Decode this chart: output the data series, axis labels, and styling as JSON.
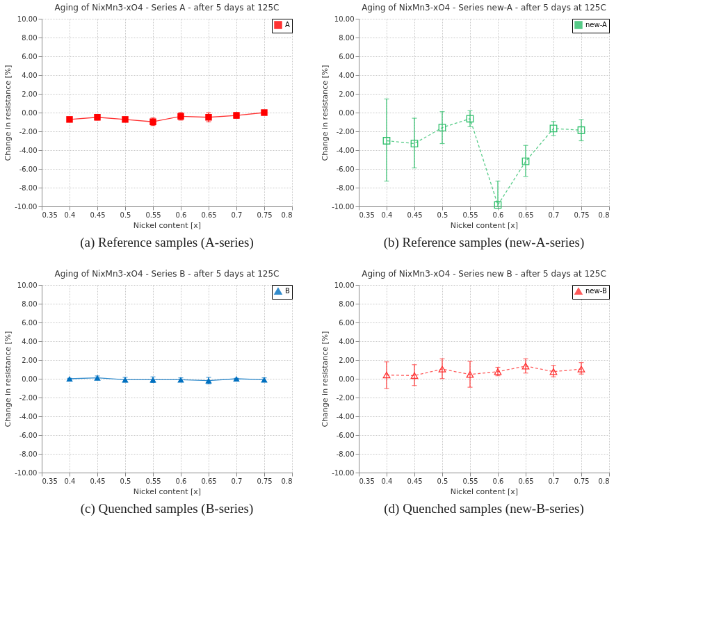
{
  "chart_data": [
    {
      "type": "line",
      "title": "Aging of NixMn3-xO4 - Series  A - after 5 days at 125C",
      "xlabel": "Nickel content [x]",
      "ylabel": "Change in resistance [%]",
      "annotations": [
        "(a) Reference samples (A-series)"
      ],
      "x": [
        0.4,
        0.45,
        0.5,
        0.55,
        0.6,
        0.65,
        0.7,
        0.75
      ],
      "series": [
        {
          "name": "A",
          "color": "#ff0000",
          "values": [
            -0.73,
            -0.5,
            -0.73,
            -0.98,
            -0.4,
            -0.5,
            -0.3,
            0.0
          ],
          "errors": [
            0.15,
            0.3,
            0.15,
            0.4,
            0.4,
            0.48,
            0.3,
            0.1
          ]
        }
      ],
      "xlim": [
        0.35,
        0.8
      ],
      "xticks": [
        0.35,
        0.4,
        0.45,
        0.5,
        0.55,
        0.6,
        0.65,
        0.7,
        0.75,
        0.8
      ],
      "ylim": [
        -10,
        10
      ],
      "yticks": [
        {
          "value": -10,
          "label": "-10.00"
        },
        {
          "value": -8,
          "label": "-8.00"
        },
        {
          "value": -6,
          "label": "-6.00"
        },
        {
          "value": -4,
          "label": "-4.00"
        },
        {
          "value": -2,
          "label": "-2.00"
        },
        {
          "value": 0,
          "label": "0.00"
        },
        {
          "value": 2,
          "label": "2.00"
        },
        {
          "value": 4,
          "label": "4.00"
        },
        {
          "value": 6,
          "label": "6.00"
        },
        {
          "value": 8,
          "label": "8.00"
        },
        {
          "value": 10,
          "label": "10.00"
        }
      ],
      "grid": true,
      "legend": "top right",
      "marker": "square",
      "line_style": "solid"
    },
    {
      "type": "line",
      "title": "Aging of NixMn3-xO4 - Series new-A - after 5 days at 125C",
      "xlabel": "Nickel content [x]",
      "ylabel": "Change in resistance [%]",
      "annotations": [
        "(b) Reference samples (new-A-series)"
      ],
      "x": [
        0.4,
        0.45,
        0.5,
        0.55,
        0.6,
        0.65,
        0.7,
        0.75
      ],
      "series": [
        {
          "name": "new-A",
          "color": "#2ebf6b",
          "values": [
            -3.0,
            -3.3,
            -1.6,
            -0.65,
            -9.85,
            -5.2,
            -1.7,
            -1.87
          ],
          "errors": [
            [
              -7.3,
              1.45
            ],
            [
              -5.9,
              -0.6
            ],
            [
              -3.3,
              0.1
            ],
            [
              -1.5,
              0.2
            ],
            [
              -10.0,
              -7.3
            ],
            [
              -6.8,
              -3.5
            ],
            [
              -2.45,
              -0.95
            ],
            [
              -3.0,
              -0.75
            ]
          ]
        }
      ],
      "xlim": [
        0.35,
        0.8
      ],
      "xticks": [
        0.35,
        0.4,
        0.45,
        0.5,
        0.55,
        0.6,
        0.65,
        0.7,
        0.75,
        0.8
      ],
      "ylim": [
        -10,
        10
      ],
      "yticks": [
        {
          "value": -10,
          "label": "-10.00"
        },
        {
          "value": -8,
          "label": "-8.00"
        },
        {
          "value": -6,
          "label": "-6.00"
        },
        {
          "value": -4,
          "label": "-4.00"
        },
        {
          "value": -2,
          "label": "-2.00"
        },
        {
          "value": 0,
          "label": "0.00"
        },
        {
          "value": 2,
          "label": "2.00"
        },
        {
          "value": 4,
          "label": "4.00"
        },
        {
          "value": 6,
          "label": "6.00"
        },
        {
          "value": 8,
          "label": "8.00"
        },
        {
          "value": 10,
          "label": "10.00"
        }
      ],
      "grid": true,
      "legend": "top right",
      "marker": "square",
      "line_style": "dashed"
    },
    {
      "type": "line",
      "title": "Aging of NixMn3-xO4 - Series B - after 5 days at 125C",
      "xlabel": "Nickel content [x]",
      "ylabel": "Change in resistance [%]",
      "annotations": [
        "(c) Quenched samples (B-series)"
      ],
      "x": [
        0.4,
        0.45,
        0.5,
        0.55,
        0.6,
        0.65,
        0.7,
        0.75
      ],
      "series": [
        {
          "name": "B",
          "color": "#0070c0",
          "values": [
            0.0,
            0.1,
            -0.1,
            -0.1,
            -0.1,
            -0.2,
            0.0,
            -0.1
          ],
          "errors": [
            0.05,
            0.2,
            0.25,
            0.3,
            0.2,
            0.35,
            0.05,
            0.2
          ]
        }
      ],
      "xlim": [
        0.35,
        0.8
      ],
      "xticks": [
        0.35,
        0.4,
        0.45,
        0.5,
        0.55,
        0.6,
        0.65,
        0.7,
        0.75,
        0.8
      ],
      "ylim": [
        -10,
        10
      ],
      "yticks": [
        {
          "value": -10,
          "label": "-10.00"
        },
        {
          "value": -8,
          "label": "-8.00"
        },
        {
          "value": -6,
          "label": "-6.00"
        },
        {
          "value": -4,
          "label": "-4.00"
        },
        {
          "value": -2,
          "label": "-2.00"
        },
        {
          "value": 0,
          "label": "0.00"
        },
        {
          "value": 2,
          "label": "2.00"
        },
        {
          "value": 4,
          "label": "4.00"
        },
        {
          "value": 6,
          "label": "6.00"
        },
        {
          "value": 8,
          "label": "8.00"
        },
        {
          "value": 10,
          "label": "10.00"
        }
      ],
      "grid": true,
      "legend": "top right",
      "marker": "triangle",
      "line_style": "solid"
    },
    {
      "type": "line",
      "title": "Aging of NixMn3-xO4 - Series new B - after 5 days at 125C",
      "xlabel": "Nickel content [x]",
      "ylabel": "Change in resistance [%]",
      "annotations": [
        "(d) Quenched samples (new-B-series)"
      ],
      "x": [
        0.4,
        0.45,
        0.5,
        0.55,
        0.6,
        0.65,
        0.7,
        0.75
      ],
      "series": [
        {
          "name": "new-B",
          "color": "#ff3333",
          "values": [
            0.4,
            0.34,
            1.03,
            0.46,
            0.76,
            1.35,
            0.76,
            1.03
          ],
          "errors": [
            [
              -1.03,
              1.8
            ],
            [
              -0.72,
              1.5
            ],
            [
              0.02,
              2.13
            ],
            [
              -0.9,
              1.85
            ],
            [
              0.32,
              1.22
            ],
            [
              0.61,
              2.13
            ],
            [
              0.21,
              1.43
            ],
            [
              0.5,
              1.73
            ]
          ]
        }
      ],
      "xlim": [
        0.35,
        0.8
      ],
      "xticks": [
        0.35,
        0.4,
        0.45,
        0.5,
        0.55,
        0.6,
        0.65,
        0.7,
        0.75,
        0.8
      ],
      "ylim": [
        -10,
        10
      ],
      "yticks": [
        {
          "value": -10,
          "label": "-10.00"
        },
        {
          "value": -8,
          "label": "-8.00"
        },
        {
          "value": -6,
          "label": "-6.00"
        },
        {
          "value": -4,
          "label": "-4.00"
        },
        {
          "value": -2,
          "label": "-2.00"
        },
        {
          "value": 0,
          "label": "0.00"
        },
        {
          "value": 2,
          "label": "2.00"
        },
        {
          "value": 4,
          "label": "4.00"
        },
        {
          "value": 6,
          "label": "6.00"
        },
        {
          "value": 8,
          "label": "8.00"
        },
        {
          "value": 10,
          "label": "10.00"
        }
      ],
      "grid": true,
      "legend": "top right",
      "marker": "triangle",
      "line_style": "dashed"
    }
  ]
}
